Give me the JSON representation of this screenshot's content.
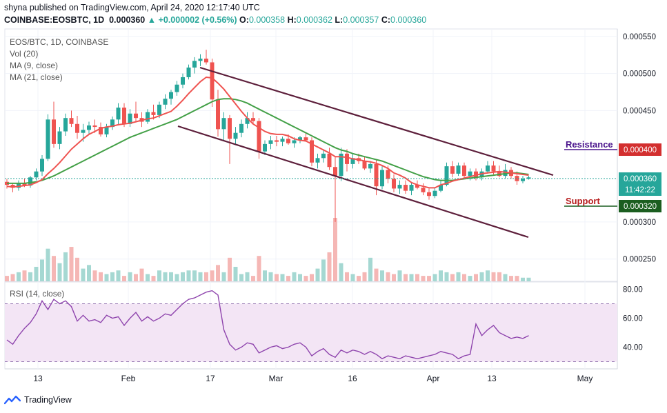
{
  "header": {
    "publisher_line": "shyna published on TradingView.com, April 24, 2020 12:17:40 UTC",
    "symbol": "COINBASE:EOSBTC, 1D",
    "last": "0.000360",
    "change": "▲ +0.000002 (+0.56%)",
    "o_label": "O:",
    "o_value": "0.000358",
    "h_label": "H:",
    "h_value": "0.000362",
    "l_label": "L:",
    "l_value": "0.000357",
    "c_label": "C:",
    "c_value": "0.000360"
  },
  "legend": {
    "symbol": "EOS/BTC, 1D, COINBASE",
    "vol": "Vol (20)",
    "ma9": "MA (9, close)",
    "ma21": "MA (21, close)",
    "rsi": "RSI (14, close)"
  },
  "annotations": {
    "resistance": "Resistance",
    "support": "Support"
  },
  "price_tags": {
    "resistance": "0.000400",
    "current": "0.000360",
    "countdown": "11:42:22",
    "support": "0.000320"
  },
  "footer": {
    "brand": "TradingView"
  },
  "colors": {
    "up": "#26a69a",
    "down": "#ef5350",
    "ma9": "#ef5350",
    "ma21": "#43a047",
    "channel": "#5d1f3b",
    "resistance": "#4a148c",
    "support": "#1b5e20",
    "rsi_line": "#8e44ad",
    "rsi_band": "#f3e5f5"
  },
  "chart_data": [
    {
      "type": "candlestick",
      "title": "EOS/BTC, 1D, COINBASE",
      "ylim": [
        0.00022,
        0.00056
      ],
      "y_ticks": [
        "0.000550",
        "0.000500",
        "0.000450",
        "0.000300",
        "0.000250"
      ],
      "x_ticks": [
        "13",
        "Feb",
        "17",
        "Mar",
        "16",
        "Apr",
        "13",
        "May"
      ],
      "resistance_level": 0.0004,
      "support_level": 0.00032,
      "ohlc": [
        [
          0.000354,
          0.000358,
          0.000345,
          0.00035
        ],
        [
          0.00035,
          0.000352,
          0.00034,
          0.000346
        ],
        [
          0.000346,
          0.000356,
          0.000342,
          0.000352
        ],
        [
          0.000352,
          0.000358,
          0.000347,
          0.000349
        ],
        [
          0.000349,
          0.000362,
          0.000346,
          0.00036
        ],
        [
          0.00036,
          0.000372,
          0.000356,
          0.000368
        ],
        [
          0.000368,
          0.00039,
          0.000362,
          0.000385
        ],
        [
          0.000385,
          0.000445,
          0.000382,
          0.000438
        ],
        [
          0.000438,
          0.000462,
          0.0004,
          0.000405
        ],
        [
          0.000405,
          0.000428,
          0.000398,
          0.000422
        ],
        [
          0.000422,
          0.000446,
          0.000416,
          0.00044
        ],
        [
          0.00044,
          0.00045,
          0.000428,
          0.000432
        ],
        [
          0.000432,
          0.000443,
          0.000412,
          0.00042
        ],
        [
          0.00042,
          0.000432,
          0.000408,
          0.000424
        ],
        [
          0.000424,
          0.000435,
          0.000418,
          0.00043
        ],
        [
          0.00043,
          0.000438,
          0.00042,
          0.000428
        ],
        [
          0.000428,
          0.000434,
          0.000415,
          0.000418
        ],
        [
          0.000418,
          0.000432,
          0.000414,
          0.000428
        ],
        [
          0.000428,
          0.000442,
          0.000424,
          0.000438
        ],
        [
          0.000438,
          0.00046,
          0.00043,
          0.000454
        ],
        [
          0.000454,
          0.00046,
          0.000428,
          0.000432
        ],
        [
          0.000432,
          0.000452,
          0.000428,
          0.000446
        ],
        [
          0.000446,
          0.000462,
          0.000435,
          0.00044
        ],
        [
          0.00044,
          0.000448,
          0.000428,
          0.000435
        ],
        [
          0.000435,
          0.000452,
          0.000432,
          0.000448
        ],
        [
          0.000448,
          0.000458,
          0.000438,
          0.000444
        ],
        [
          0.000444,
          0.000462,
          0.00044,
          0.000458
        ],
        [
          0.000458,
          0.000472,
          0.000452,
          0.000466
        ],
        [
          0.000466,
          0.000478,
          0.000458,
          0.000475
        ],
        [
          0.000475,
          0.00049,
          0.00047,
          0.000485
        ],
        [
          0.000485,
          0.0005,
          0.00048,
          0.000495
        ],
        [
          0.000495,
          0.000512,
          0.000492,
          0.000508
        ],
        [
          0.000508,
          0.000522,
          0.0005,
          0.000517
        ],
        [
          0.000517,
          0.000526,
          0.00051,
          0.00052
        ],
        [
          0.00052,
          0.000532,
          0.000512,
          0.000515
        ],
        [
          0.000515,
          0.00052,
          0.000455,
          0.000465
        ],
        [
          0.000465,
          0.000478,
          0.000415,
          0.000425
        ],
        [
          0.000425,
          0.000448,
          0.00041,
          0.00044
        ],
        [
          0.00044,
          0.000444,
          0.000378,
          0.000412
        ],
        [
          0.000412,
          0.000428,
          0.000405,
          0.00042
        ],
        [
          0.00042,
          0.000438,
          0.000414,
          0.000432
        ],
        [
          0.000432,
          0.000448,
          0.000426,
          0.00044
        ],
        [
          0.00044,
          0.000448,
          0.000432,
          0.000436
        ],
        [
          0.000436,
          0.00044,
          0.000385,
          0.000395
        ],
        [
          0.000395,
          0.00041,
          0.00039,
          0.000405
        ],
        [
          0.000405,
          0.000416,
          0.000398,
          0.00041
        ],
        [
          0.00041,
          0.000416,
          0.000402,
          0.000408
        ],
        [
          0.000408,
          0.000415,
          0.000402,
          0.000412
        ],
        [
          0.000412,
          0.000418,
          0.000404,
          0.000406
        ],
        [
          0.000406,
          0.000414,
          0.0004,
          0.00041
        ],
        [
          0.00041,
          0.000416,
          0.000406,
          0.000414
        ],
        [
          0.000414,
          0.00042,
          0.000408,
          0.00041
        ],
        [
          0.00041,
          0.000414,
          0.000375,
          0.00038
        ],
        [
          0.00038,
          0.000392,
          0.000372,
          0.000386
        ],
        [
          0.000386,
          0.000398,
          0.00038,
          0.000392
        ],
        [
          0.000392,
          0.0004,
          0.00037,
          0.000374
        ],
        [
          0.000374,
          0.000388,
          0.0003,
          0.000362
        ],
        [
          0.000362,
          0.0004,
          0.000355,
          0.000392
        ],
        [
          0.000392,
          0.000398,
          0.000368,
          0.000378
        ],
        [
          0.000378,
          0.000392,
          0.000372,
          0.000386
        ],
        [
          0.000386,
          0.000392,
          0.000378,
          0.000382
        ],
        [
          0.000382,
          0.000388,
          0.00037,
          0.000372
        ],
        [
          0.000372,
          0.000382,
          0.000366,
          0.000378
        ],
        [
          0.000378,
          0.000384,
          0.000336,
          0.000348
        ],
        [
          0.000348,
          0.000376,
          0.000344,
          0.00037
        ],
        [
          0.00037,
          0.000376,
          0.000352,
          0.000358
        ],
        [
          0.000358,
          0.000364,
          0.00034,
          0.000345
        ],
        [
          0.000345,
          0.000356,
          0.000338,
          0.00035
        ],
        [
          0.00035,
          0.000356,
          0.000338,
          0.000342
        ],
        [
          0.000342,
          0.000354,
          0.000336,
          0.00035
        ],
        [
          0.00035,
          0.000356,
          0.000344,
          0.000346
        ],
        [
          0.000346,
          0.000352,
          0.000336,
          0.00034
        ],
        [
          0.00034,
          0.000345,
          0.00033,
          0.000335
        ],
        [
          0.000335,
          0.000346,
          0.000332,
          0.000342
        ],
        [
          0.000342,
          0.000355,
          0.00034,
          0.00035
        ],
        [
          0.00035,
          0.00038,
          0.000348,
          0.000375
        ],
        [
          0.000375,
          0.000382,
          0.00036,
          0.000365
        ],
        [
          0.000365,
          0.00038,
          0.000362,
          0.000376
        ],
        [
          0.000376,
          0.00038,
          0.000358,
          0.000362
        ],
        [
          0.000362,
          0.000372,
          0.000356,
          0.000368
        ],
        [
          0.000368,
          0.000372,
          0.000356,
          0.00036
        ],
        [
          0.00036,
          0.000372,
          0.000356,
          0.000368
        ],
        [
          0.000368,
          0.000382,
          0.000365,
          0.000376
        ],
        [
          0.000376,
          0.000382,
          0.000364,
          0.000368
        ],
        [
          0.000368,
          0.000376,
          0.00036,
          0.000362
        ],
        [
          0.000362,
          0.000378,
          0.000358,
          0.00037
        ],
        [
          0.00037,
          0.000374,
          0.000358,
          0.000362
        ],
        [
          0.000362,
          0.000368,
          0.00035,
          0.000355
        ],
        [
          0.000355,
          0.000362,
          0.000352,
          0.000358
        ],
        [
          0.000358,
          0.000362,
          0.000357,
          0.00036
        ]
      ],
      "volume": [
        3,
        4,
        5,
        6,
        5,
        8,
        12,
        18,
        14,
        10,
        16,
        19,
        13,
        7,
        9,
        6,
        5,
        4,
        5,
        6,
        3,
        5,
        4,
        7,
        4,
        3,
        6,
        5,
        5,
        4,
        5,
        6,
        6,
        5,
        5,
        6,
        9,
        5,
        13,
        8,
        4,
        5,
        3,
        14,
        6,
        5,
        4,
        4,
        3,
        5,
        4,
        3,
        4,
        7,
        12,
        16,
        35,
        10,
        5,
        4,
        3,
        5,
        13,
        7,
        6,
        5,
        4,
        6,
        4,
        4,
        4,
        3,
        3,
        4,
        6,
        5,
        4,
        5,
        4,
        3,
        4,
        5,
        6,
        5,
        5,
        4,
        3,
        3,
        2,
        2
      ],
      "ma9": [
        0.000348,
        0.000347,
        0.000348,
        0.000349,
        0.00035,
        0.000353,
        0.000357,
        0.000365,
        0.000372,
        0.00038,
        0.000389,
        0.000398,
        0.000405,
        0.000412,
        0.000418,
        0.000422,
        0.000426,
        0.000428,
        0.000429,
        0.000431,
        0.000432,
        0.000433,
        0.000435,
        0.000437,
        0.000439,
        0.00044,
        0.000443,
        0.000446,
        0.000449,
        0.000456,
        0.000464,
        0.000473,
        0.000481,
        0.000489,
        0.000495,
        0.000494,
        0.000487,
        0.000479,
        0.000469,
        0.000459,
        0.000449,
        0.00044,
        0.000432,
        0.000427,
        0.000422,
        0.000419,
        0.000418,
        0.000418,
        0.000416,
        0.000412,
        0.00041,
        0.000409,
        0.000405,
        0.000401,
        0.000397,
        0.000393,
        0.000388,
        0.000388,
        0.000387,
        0.000385,
        0.000384,
        0.000382,
        0.000381,
        0.000379,
        0.000376,
        0.000372,
        0.000366,
        0.000363,
        0.000359,
        0.000353,
        0.00035,
        0.000348,
        0.000346,
        0.000346,
        0.00035,
        0.000352,
        0.000355,
        0.000357,
        0.000359,
        0.000361,
        0.000363,
        0.000365,
        0.000366,
        0.000367,
        0.000368,
        0.000367,
        0.000366,
        0.000365,
        0.000364,
        0.000363
      ],
      "ma21": [
        0.000352,
        0.000352,
        0.000352,
        0.000352,
        0.000353,
        0.000354,
        0.000356,
        0.000359,
        0.000362,
        0.000366,
        0.00037,
        0.000374,
        0.000378,
        0.000382,
        0.000386,
        0.00039,
        0.000394,
        0.000398,
        0.000402,
        0.000406,
        0.00041,
        0.000414,
        0.000417,
        0.00042,
        0.000423,
        0.000426,
        0.000429,
        0.000432,
        0.000435,
        0.000438,
        0.000442,
        0.000446,
        0.00045,
        0.000454,
        0.000458,
        0.000462,
        0.000465,
        0.000466,
        0.000466,
        0.000465,
        0.000463,
        0.00046,
        0.000456,
        0.000452,
        0.000448,
        0.000444,
        0.00044,
        0.000436,
        0.000432,
        0.000428,
        0.000424,
        0.00042,
        0.000416,
        0.000412,
        0.000408,
        0.000404,
        0.0004,
        0.000397,
        0.000395,
        0.000392,
        0.00039,
        0.000388,
        0.000386,
        0.000384,
        0.000382,
        0.000379,
        0.000376,
        0.000373,
        0.00037,
        0.000367,
        0.000364,
        0.000361,
        0.000359,
        0.000357,
        0.000356,
        0.000356,
        0.000356,
        0.000357,
        0.000358,
        0.000359,
        0.00036,
        0.000361,
        0.000362,
        0.000363,
        0.000364,
        0.000365,
        0.000366,
        0.000366,
        0.000365,
        0.000364
      ]
    },
    {
      "type": "line",
      "title": "RSI (14, close)",
      "ylim": [
        25,
        85
      ],
      "y_ticks": [
        "80.00",
        "60.00",
        "40.00"
      ],
      "band": [
        30,
        70
      ],
      "values": [
        45,
        42,
        48,
        53,
        57,
        63,
        72,
        66,
        73,
        70,
        72,
        68,
        58,
        62,
        58,
        59,
        57,
        62,
        60,
        61,
        55,
        60,
        64,
        58,
        61,
        58,
        60,
        63,
        62,
        66,
        70,
        73,
        74,
        76,
        78,
        79,
        76,
        52,
        42,
        38,
        40,
        43,
        42,
        36,
        38,
        40,
        41,
        39,
        40,
        42,
        43,
        40,
        34,
        37,
        39,
        35,
        33,
        38,
        36,
        38,
        37,
        35,
        37,
        35,
        32,
        34,
        33,
        32,
        34,
        33,
        32,
        33,
        34,
        35,
        37,
        36,
        35,
        32,
        34,
        35,
        56,
        48,
        52,
        55,
        50,
        48,
        46,
        47,
        46,
        48
      ]
    }
  ]
}
